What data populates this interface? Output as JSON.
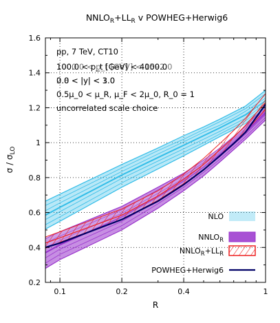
{
  "chart_data": {
    "type": "line",
    "title": "NNLO_R+LL_R v POWHEG+Herwig6",
    "title_parts": {
      "a": "NNLO",
      "a_sub": "R",
      "b": "+LL",
      "b_sub": "R",
      "c": " v POWHEG+Herwig6"
    },
    "xlabel": "R",
    "ylabel": "σ / σ_LO",
    "ylabel_parts": {
      "main": "σ / σ",
      "sub": "LO"
    },
    "x_scale": "log",
    "xlim": [
      0.085,
      1.0
    ],
    "ylim": [
      0.2,
      1.6
    ],
    "x_ticks": [
      {
        "value": 0.1,
        "label": "0.1"
      },
      {
        "value": 0.2,
        "label": "0.2"
      },
      {
        "value": 0.4,
        "label": "0.4"
      },
      {
        "value": 1.0,
        "label": "1"
      }
    ],
    "y_ticks": [
      {
        "value": 0.2,
        "label": "0.2"
      },
      {
        "value": 0.4,
        "label": "0.4"
      },
      {
        "value": 0.6,
        "label": "0.6"
      },
      {
        "value": 0.8,
        "label": "0.8"
      },
      {
        "value": 1.0,
        "label": "1"
      },
      {
        "value": 1.2,
        "label": "1.2"
      },
      {
        "value": 1.4,
        "label": "1.4"
      },
      {
        "value": 1.6,
        "label": "1.6"
      }
    ],
    "grid": "dotted major ticks",
    "annotations": [
      "pp, 7 TeV, CT10",
      "100.0 < p_t [GeV] < 4000.0",
      "0.0 < |y| < 3.0",
      "0.5μ_0 < μ_R, μ_F < 2μ_0, R_0 = 1",
      "uncorrelated scale choice"
    ],
    "annotation_overlays": [
      "1000.0 < p_t [GeV] < 1592.0",
      "2.8 < |y| < 1.0"
    ],
    "legend_position": "bottom-right",
    "legend": [
      {
        "name": "NLO",
        "name_main": "NLO",
        "name_sub": "",
        "name_tail": "",
        "style": "band",
        "color": "#33bde8"
      },
      {
        "name": "NNLO_R",
        "name_main": "NNLO",
        "name_sub": "R",
        "name_tail": "",
        "style": "band",
        "color": "#9933cc"
      },
      {
        "name": "NNLO_R+LL_R",
        "name_main": "NNLO",
        "name_sub": "R",
        "name_tail": "+LL",
        "name_sub2": "R",
        "style": "hatched",
        "color": "#ee2222"
      },
      {
        "name": "POWHEG+Herwig6",
        "name_main": "POWHEG+Herwig6",
        "name_sub": "",
        "name_tail": "",
        "style": "line",
        "color": "#000066"
      }
    ],
    "series": [
      {
        "name": "NLO",
        "style": "band",
        "color": "#33bde8",
        "x": [
          0.085,
          0.1,
          0.2,
          0.3,
          0.4,
          0.5,
          0.6,
          0.7,
          0.8,
          1.0
        ],
        "central": [
          0.585,
          0.63,
          0.815,
          0.915,
          0.985,
          1.04,
          1.085,
          1.125,
          1.16,
          1.24
        ],
        "lower": [
          0.505,
          0.55,
          0.745,
          0.85,
          0.925,
          0.985,
          1.035,
          1.075,
          1.11,
          1.2
        ],
        "upper": [
          0.665,
          0.705,
          0.875,
          0.97,
          1.04,
          1.09,
          1.135,
          1.175,
          1.21,
          1.3
        ],
        "band_lines": [
          [
            0.53,
            0.575,
            0.77,
            0.875,
            0.945,
            1.0,
            1.05,
            1.09,
            1.125,
            1.21
          ],
          [
            0.56,
            0.605,
            0.795,
            0.895,
            0.965,
            1.02,
            1.065,
            1.105,
            1.14,
            1.225
          ],
          [
            0.61,
            0.655,
            0.835,
            0.935,
            1.005,
            1.06,
            1.1,
            1.14,
            1.18,
            1.255
          ],
          [
            0.64,
            0.68,
            0.855,
            0.955,
            1.02,
            1.075,
            1.12,
            1.16,
            1.195,
            1.28
          ]
        ]
      },
      {
        "name": "NNLO_R",
        "style": "band",
        "color": "#9933cc",
        "x": [
          0.085,
          0.1,
          0.2,
          0.3,
          0.4,
          0.5,
          0.6,
          0.7,
          0.8,
          1.0
        ],
        "central": [
          0.37,
          0.415,
          0.575,
          0.69,
          0.78,
          0.86,
          0.935,
          1.0,
          1.06,
          1.17
        ],
        "lower": [
          0.28,
          0.33,
          0.5,
          0.625,
          0.725,
          0.81,
          0.89,
          0.96,
          1.02,
          1.13
        ],
        "upper": [
          0.45,
          0.49,
          0.635,
          0.745,
          0.825,
          0.9,
          0.97,
          1.035,
          1.095,
          1.21
        ],
        "band_lines": [
          [
            0.31,
            0.36,
            0.525,
            0.65,
            0.745,
            0.83,
            0.905,
            0.975,
            1.035,
            1.145
          ],
          [
            0.34,
            0.39,
            0.55,
            0.67,
            0.76,
            0.845,
            0.92,
            0.99,
            1.05,
            1.16
          ],
          [
            0.4,
            0.44,
            0.595,
            0.71,
            0.795,
            0.875,
            0.945,
            1.01,
            1.07,
            1.18
          ],
          [
            0.425,
            0.465,
            0.615,
            0.73,
            0.81,
            0.885,
            0.955,
            1.02,
            1.08,
            1.195
          ]
        ]
      },
      {
        "name": "NNLO_R+LL_R",
        "style": "hatched",
        "color": "#ee2222",
        "x": [
          0.085,
          0.1,
          0.2,
          0.3,
          0.4,
          0.5,
          0.6,
          0.7,
          0.8,
          1.0
        ],
        "central": [
          0.425,
          0.455,
          0.585,
          0.695,
          0.79,
          0.875,
          0.96,
          1.03,
          1.1,
          1.23
        ],
        "lower": [
          0.395,
          0.43,
          0.56,
          0.67,
          0.765,
          0.845,
          0.925,
          0.995,
          1.065,
          1.19
        ],
        "upper": [
          0.46,
          0.49,
          0.62,
          0.725,
          0.82,
          0.91,
          0.995,
          1.07,
          1.14,
          1.28
        ],
        "band_lines": []
      },
      {
        "name": "POWHEG+Herwig6",
        "style": "line",
        "color": "#000066",
        "x": [
          0.085,
          0.1,
          0.2,
          0.3,
          0.4,
          0.5,
          0.6,
          0.7,
          0.8,
          1.0
        ],
        "central": [
          0.4,
          0.425,
          0.56,
          0.665,
          0.76,
          0.845,
          0.925,
          0.995,
          1.06,
          1.22
        ],
        "lower": [],
        "upper": [],
        "band_lines": []
      }
    ]
  }
}
